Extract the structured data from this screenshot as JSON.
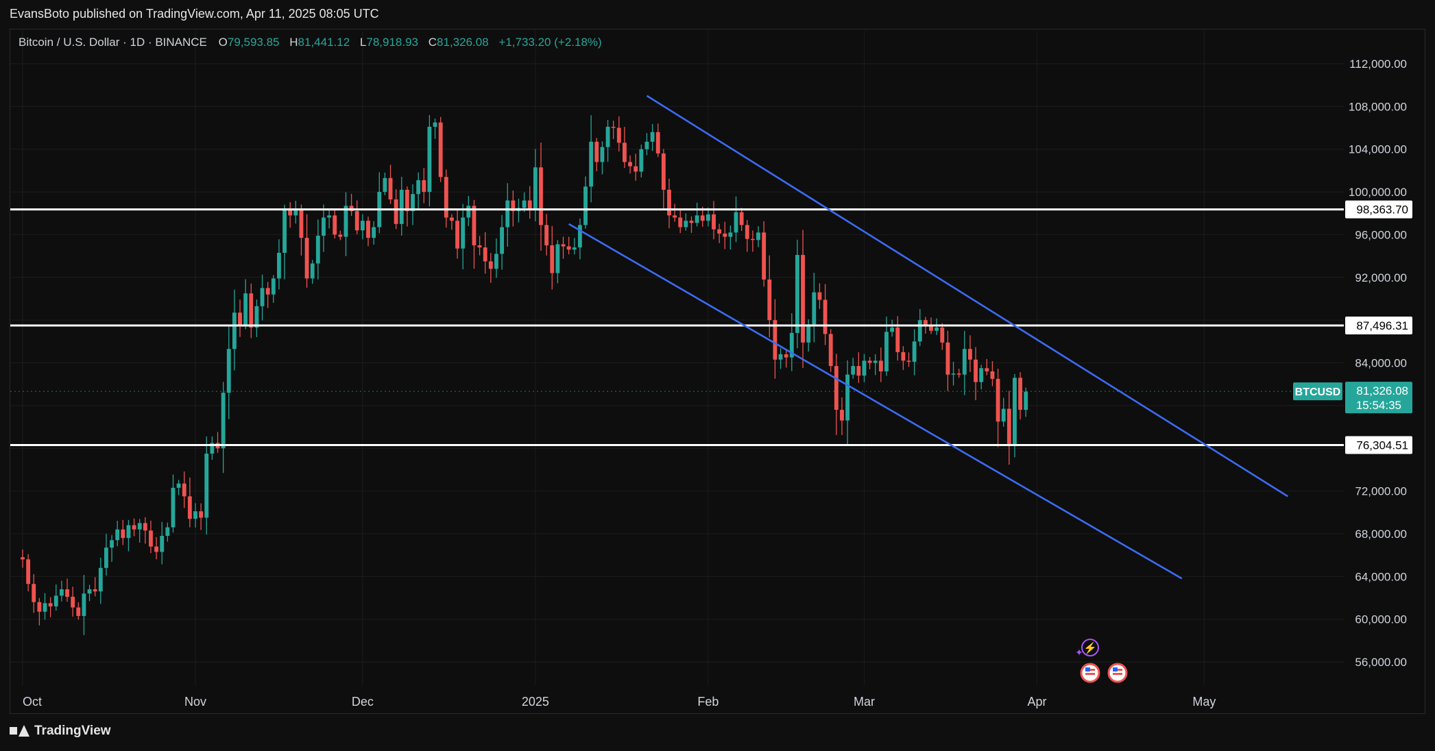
{
  "header": {
    "publisher": "EvansBoto published on TradingView.com, Apr 11, 2025 08:05 UTC"
  },
  "legend": {
    "symbol": "Bitcoin / U.S. Dollar · 1D · BINANCE",
    "open_label": "O",
    "open": "79,593.85",
    "high_label": "H",
    "high": "81,441.12",
    "low_label": "L",
    "low": "78,918.93",
    "close_label": "C",
    "close": "81,326.08",
    "change": "+1,733.20 (+2.18%)"
  },
  "footer": {
    "brand": "TradingView"
  },
  "colors": {
    "up": "#26a69a",
    "down": "#ef5350",
    "channel": "#3b6cf5",
    "level": "#ffffff",
    "background": "#0e0e0e"
  },
  "chart_data": {
    "type": "candlestick",
    "title": "Bitcoin / U.S. Dollar · 1D · BINANCE",
    "ylim": [
      54000,
      115000
    ],
    "y_ticks": [
      "112,000.00",
      "108,000.00",
      "104,000.00",
      "100,000.00",
      "96,000.00",
      "92,000.00",
      "84,000.00",
      "72,000.00",
      "68,000.00",
      "64,000.00",
      "60,000.00",
      "56,000.00"
    ],
    "y_tick_values": [
      112000,
      108000,
      104000,
      100000,
      96000,
      92000,
      84000,
      72000,
      68000,
      64000,
      60000,
      56000
    ],
    "x_labels": [
      {
        "label": "Oct",
        "day": 0
      },
      {
        "label": "Nov",
        "day": 31
      },
      {
        "label": "Dec",
        "day": 61
      },
      {
        "label": "2025",
        "day": 92
      },
      {
        "label": "Feb",
        "day": 123
      },
      {
        "label": "Mar",
        "day": 151
      },
      {
        "label": "Apr",
        "day": 182
      },
      {
        "label": "May",
        "day": 212
      }
    ],
    "start_date": "2024-09-30",
    "horizontal_levels": [
      {
        "label": "98,363.70",
        "value": 98363.7
      },
      {
        "label": "87,496.31",
        "value": 87496.31
      },
      {
        "label": "76,304.51",
        "value": 76304.51
      }
    ],
    "current_price": {
      "symbol": "BTCUSD",
      "label": "81,326.08",
      "countdown": "15:54:35",
      "value": 81326.08
    },
    "channel_lines": [
      {
        "from": {
          "day": 112,
          "value": 109000
        },
        "to": {
          "day": 227,
          "value": 71500
        }
      },
      {
        "from": {
          "day": 98,
          "value": 97000
        },
        "to": {
          "day": 208,
          "value": 63800
        }
      }
    ],
    "closes": [
      65600,
      63300,
      61600,
      60700,
      61500,
      61200,
      62200,
      62800,
      62100,
      61100,
      60300,
      62400,
      62800,
      62600,
      64800,
      66700,
      67400,
      68400,
      67600,
      68800,
      68400,
      69000,
      68300,
      66800,
      66300,
      67800,
      68600,
      72300,
      72700,
      71500,
      69400,
      70100,
      69500,
      75500,
      76500,
      76000,
      81200,
      85300,
      88700,
      87500,
      90500,
      87300,
      89300,
      91000,
      90400,
      91900,
      94300,
      98300,
      97800,
      98300,
      95700,
      91900,
      93300,
      95900,
      97600,
      97800,
      96000,
      95800,
      98700,
      98200,
      96400,
      97300,
      95700,
      96700,
      100000,
      101300,
      99300,
      97000,
      100200,
      98200,
      99800,
      101100,
      100000,
      106100,
      106500,
      101400,
      97600,
      97300,
      94700,
      97600,
      98700,
      95000,
      94800,
      93500,
      92800,
      94200,
      96700,
      99200,
      98200,
      98500,
      99200,
      98400,
      102300,
      96900,
      95000,
      92400,
      95100,
      94900,
      94600,
      94800,
      96900,
      100500,
      104700,
      102800,
      104200,
      106100,
      106000,
      104600,
      102800,
      102400,
      101900,
      104000,
      104700,
      105600,
      103600,
      100200,
      97800,
      97600,
      96700,
      97300,
      97100,
      97800,
      97300,
      97900,
      96500,
      96100,
      95800,
      96200,
      98100,
      96900,
      95600,
      95500,
      96200,
      91800,
      88000,
      84300,
      84800,
      84500,
      86800,
      94100,
      85900,
      87600,
      90600,
      89900,
      86700,
      83700,
      79600,
      78600,
      82900,
      83700,
      82800,
      84200,
      84000,
      84200,
      83200,
      86900,
      87300,
      85000,
      84200,
      84100,
      86000,
      88000,
      87500,
      87000,
      87300,
      85900,
      82900,
      83000,
      82900,
      85300,
      84300,
      82200,
      83500,
      83200,
      82500,
      78500,
      79700,
      76200,
      82600,
      79600,
      81300
    ],
    "candles_note": "daily candles derived from closes; ticks drawn per day"
  }
}
